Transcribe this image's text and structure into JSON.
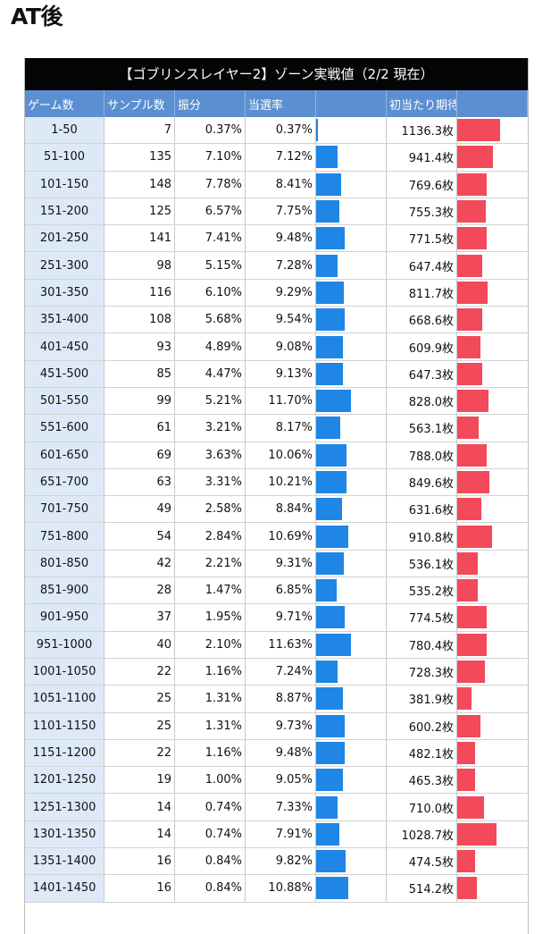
{
  "heading": "AT後",
  "table": {
    "title": "【ゴブリンスレイヤー2】ゾーン実戦値（2/2 現在）",
    "headers": [
      "ゲーム数",
      "サンプル数",
      "振分",
      "当選率",
      "",
      "初当たり期待枚数",
      ""
    ],
    "colors": {
      "rate_bar": "#1f86e6",
      "expect_bar": "#f24a5a",
      "header_bg": "#5b8fd1",
      "game_col_bg": "#dde9f6"
    },
    "rows": [
      {
        "game": "1-50",
        "samples": "7",
        "dist": "0.37%",
        "rate": "0.37%",
        "expected": "1136.3枚"
      },
      {
        "game": "51-100",
        "samples": "135",
        "dist": "7.10%",
        "rate": "7.12%",
        "expected": "941.4枚"
      },
      {
        "game": "101-150",
        "samples": "148",
        "dist": "7.78%",
        "rate": "8.41%",
        "expected": "769.6枚"
      },
      {
        "game": "151-200",
        "samples": "125",
        "dist": "6.57%",
        "rate": "7.75%",
        "expected": "755.3枚"
      },
      {
        "game": "201-250",
        "samples": "141",
        "dist": "7.41%",
        "rate": "9.48%",
        "expected": "771.5枚"
      },
      {
        "game": "251-300",
        "samples": "98",
        "dist": "5.15%",
        "rate": "7.28%",
        "expected": "647.4枚"
      },
      {
        "game": "301-350",
        "samples": "116",
        "dist": "6.10%",
        "rate": "9.29%",
        "expected": "811.7枚"
      },
      {
        "game": "351-400",
        "samples": "108",
        "dist": "5.68%",
        "rate": "9.54%",
        "expected": "668.6枚"
      },
      {
        "game": "401-450",
        "samples": "93",
        "dist": "4.89%",
        "rate": "9.08%",
        "expected": "609.9枚"
      },
      {
        "game": "451-500",
        "samples": "85",
        "dist": "4.47%",
        "rate": "9.13%",
        "expected": "647.3枚"
      },
      {
        "game": "501-550",
        "samples": "99",
        "dist": "5.21%",
        "rate": "11.70%",
        "expected": "828.0枚"
      },
      {
        "game": "551-600",
        "samples": "61",
        "dist": "3.21%",
        "rate": "8.17%",
        "expected": "563.1枚"
      },
      {
        "game": "601-650",
        "samples": "69",
        "dist": "3.63%",
        "rate": "10.06%",
        "expected": "788.0枚"
      },
      {
        "game": "651-700",
        "samples": "63",
        "dist": "3.31%",
        "rate": "10.21%",
        "expected": "849.6枚"
      },
      {
        "game": "701-750",
        "samples": "49",
        "dist": "2.58%",
        "rate": "8.84%",
        "expected": "631.6枚"
      },
      {
        "game": "751-800",
        "samples": "54",
        "dist": "2.84%",
        "rate": "10.69%",
        "expected": "910.8枚"
      },
      {
        "game": "801-850",
        "samples": "42",
        "dist": "2.21%",
        "rate": "9.31%",
        "expected": "536.1枚"
      },
      {
        "game": "851-900",
        "samples": "28",
        "dist": "1.47%",
        "rate": "6.85%",
        "expected": "535.2枚"
      },
      {
        "game": "901-950",
        "samples": "37",
        "dist": "1.95%",
        "rate": "9.71%",
        "expected": "774.5枚"
      },
      {
        "game": "951-1000",
        "samples": "40",
        "dist": "2.10%",
        "rate": "11.63%",
        "expected": "780.4枚"
      },
      {
        "game": "1001-1050",
        "samples": "22",
        "dist": "1.16%",
        "rate": "7.24%",
        "expected": "728.3枚"
      },
      {
        "game": "1051-1100",
        "samples": "25",
        "dist": "1.31%",
        "rate": "8.87%",
        "expected": "381.9枚"
      },
      {
        "game": "1101-1150",
        "samples": "25",
        "dist": "1.31%",
        "rate": "9.73%",
        "expected": "600.2枚"
      },
      {
        "game": "1151-1200",
        "samples": "22",
        "dist": "1.16%",
        "rate": "9.48%",
        "expected": "482.1枚"
      },
      {
        "game": "1201-1250",
        "samples": "19",
        "dist": "1.00%",
        "rate": "9.05%",
        "expected": "465.3枚"
      },
      {
        "game": "1251-1300",
        "samples": "14",
        "dist": "0.74%",
        "rate": "7.33%",
        "expected": "710.0枚"
      },
      {
        "game": "1301-1350",
        "samples": "14",
        "dist": "0.74%",
        "rate": "7.91%",
        "expected": "1028.7枚"
      },
      {
        "game": "1351-1400",
        "samples": "16",
        "dist": "0.84%",
        "rate": "9.82%",
        "expected": "474.5枚"
      },
      {
        "game": "1401-1450",
        "samples": "16",
        "dist": "0.84%",
        "rate": "10.88%",
        "expected": "514.2枚"
      }
    ]
  }
}
